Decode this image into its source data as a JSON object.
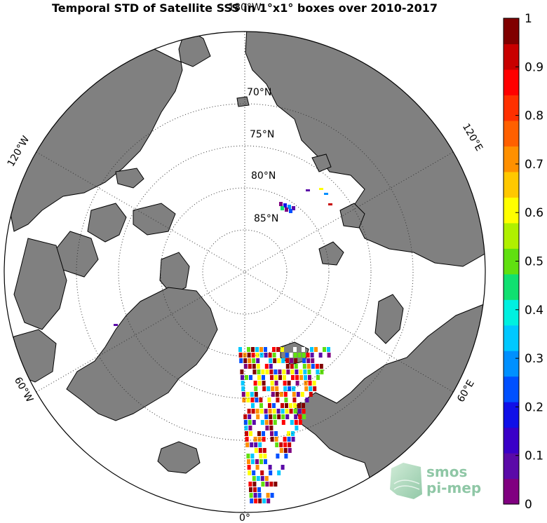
{
  "title": "Temporal STD of Satellite SSS in 1°x1° boxes over 2010-2017",
  "latitude_labels": [
    {
      "text": "70°N",
      "lat": 70
    },
    {
      "text": "75°N",
      "lat": 75
    },
    {
      "text": "80°N",
      "lat": 80
    },
    {
      "text": "85°N",
      "lat": 85
    }
  ],
  "longitude_labels": {
    "top": "180°W",
    "bottom": "0°",
    "upper_left": "120°W",
    "lower_left": "60°W",
    "upper_right": "120°E",
    "lower_right": "60°E"
  },
  "colorbar": {
    "ticks": [
      "0",
      "0.1",
      "0.2",
      "0.3",
      "0.4",
      "0.5",
      "0.6",
      "0.7",
      "0.8",
      "0.9",
      "1"
    ],
    "min": 0,
    "max": 1,
    "colors": [
      "#800080",
      "#5b0aa8",
      "#3a00c8",
      "#1010e8",
      "#0050ff",
      "#0090ff",
      "#00c8ff",
      "#00f0e0",
      "#10e070",
      "#60e010",
      "#b0f000",
      "#ffff00",
      "#ffc800",
      "#ff9000",
      "#ff6000",
      "#ff3000",
      "#ff0000",
      "#c80000",
      "#800000"
    ]
  },
  "logo": {
    "line1": "smos",
    "line2": "pi-mep"
  },
  "colors": {
    "land": "#808080",
    "ocean": "#ffffff",
    "coast": "#000000"
  }
}
